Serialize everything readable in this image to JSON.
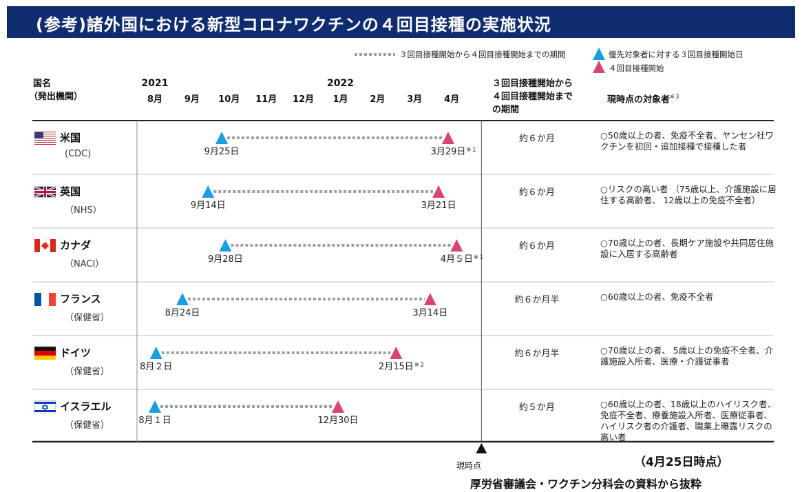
{
  "title": "(参考)諸外国における新型コロナワクチンの４回目接種の実施状況",
  "legend": {
    "period": "３回目接種開始から４回目接種開始までの期間",
    "first": "優先対象者に対する３回目接種開始日",
    "second": "４回目接種開始"
  },
  "headers": {
    "country": "国名",
    "agency": "（発出機関）",
    "period_l1": "３回目接種開始から",
    "period_l2": "４回目接種開始まで",
    "period_l3": "の期間",
    "target": "現時点の対象者",
    "target_note": "※３"
  },
  "years": [
    {
      "label": "2021",
      "month_index": 0
    },
    {
      "label": "2022",
      "month_index": 5
    }
  ],
  "months": [
    "8月",
    "9月",
    "10月",
    "11月",
    "12月",
    "1月",
    "2月",
    "3月",
    "4月"
  ],
  "now_label": "現時点",
  "as_of": "（4月25日時点）",
  "source": "厚労省審議会・ワクチン分科会の資料から抜粋",
  "colors": {
    "title_bg": "#0f2d6e",
    "first_marker": "#1a9ee0",
    "second_marker": "#d8456f",
    "dotted_line": "#9a9fa8"
  },
  "chart_data": {
    "type": "timeline",
    "x_axis": {
      "start": "2021-08-01",
      "end": "2022-04-30"
    },
    "rows": [
      {
        "country": "米国",
        "agency": "(CDC)",
        "flag": "us-flag",
        "third_dose_start": "2021-09-25",
        "third_label": "9月25日",
        "fourth_dose_start": "2022-03-29",
        "fourth_label": "3月29日",
        "fourth_note": "※１",
        "period": "約６か月",
        "target": "○50歳以上の者、免疫不全者、ヤンセン社ワクチンを初回・追加接種で接種した者"
      },
      {
        "country": "英国",
        "agency": "（NHS）",
        "flag": "uk-flag",
        "third_dose_start": "2021-09-14",
        "third_label": "9月14日",
        "fourth_dose_start": "2022-03-21",
        "fourth_label": "3月21日",
        "fourth_note": "",
        "period": "約６か月",
        "target": "○リスクの高い者 （75歳以上、介護施設に居住する高齢者、 12歳以上の免疫不全者）"
      },
      {
        "country": "カナダ",
        "agency": "（NACI）",
        "flag": "canada-flag",
        "third_dose_start": "2021-09-28",
        "third_label": "9月28日",
        "fourth_dose_start": "2022-04-05",
        "fourth_label": "4月５日",
        "fourth_note": "※１",
        "period": "約６か月",
        "target": "○70歳以上の者、長期ケア施設や共同居住施設に入居する高齢者"
      },
      {
        "country": "フランス",
        "agency": "（保健省）",
        "flag": "france-flag",
        "third_dose_start": "2021-08-24",
        "third_label": "8月24日",
        "fourth_dose_start": "2022-03-14",
        "fourth_label": "3月14日",
        "fourth_note": "",
        "period": "約６か月半",
        "target": "○60歳以上の者、免疫不全者"
      },
      {
        "country": "ドイツ",
        "agency": "（保健省）",
        "flag": "germany-flag",
        "third_dose_start": "2021-08-02",
        "third_label": "8月２日",
        "fourth_dose_start": "2022-02-15",
        "fourth_label": "2月15日",
        "fourth_note": "※２",
        "period": "約６か月半",
        "target": "○70歳以上の者、 5歳以上の免疫不全者、介護施設入所者、医療・介護従事者"
      },
      {
        "country": "イスラエル",
        "agency": "（保健省）",
        "flag": "israel-flag",
        "third_dose_start": "2021-08-01",
        "third_label": "8月１日",
        "fourth_dose_start": "2021-12-30",
        "fourth_label": "12月30日",
        "fourth_note": "",
        "period": "約５か月",
        "target": "○60歳以上の者、18歳以上のハイリスク者、免疫不全者、療養施設入所者、医療従事者、ハイリスク者の介護者、職業上曝露リスクの高い者"
      }
    ],
    "now_marker": "2022-04-25"
  }
}
